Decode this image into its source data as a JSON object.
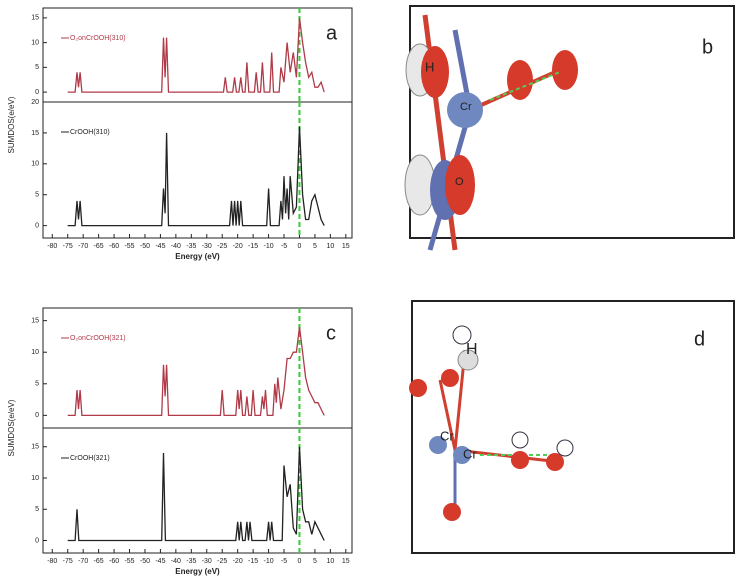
{
  "chart_data": [
    {
      "type": "line",
      "panel_label": "a",
      "xlim": [
        -83,
        17
      ],
      "ylim": [
        -2,
        17
      ],
      "yticks": [
        0,
        5,
        10,
        15
      ],
      "vline": 0,
      "x": [
        -75,
        -72.6,
        -72,
        -71.5,
        -71,
        -70.4,
        -44.6,
        -44,
        -43.5,
        -43,
        -42.4,
        -24.6,
        -24,
        -23.4,
        -21.6,
        -21,
        -20.4,
        -19.6,
        -19,
        -18.4,
        -17.6,
        -17,
        -16.4,
        -14.6,
        -14,
        -13.4,
        -12.6,
        -12,
        -11.4,
        -9.6,
        -9,
        -8.4,
        -6.6,
        -6,
        -5,
        -4,
        -3,
        -2,
        -1,
        0,
        1,
        2,
        3,
        4,
        5,
        6,
        7,
        8
      ],
      "series": [
        {
          "name": "O₂onCrOOH(310)",
          "color": "#b03a48",
          "values": [
            0,
            0,
            4,
            1,
            4,
            0,
            0,
            11,
            3,
            11,
            0,
            0,
            3,
            0,
            0,
            3,
            0,
            0,
            3,
            0,
            0,
            6,
            0,
            0,
            4,
            0,
            0,
            6,
            0,
            0,
            8,
            0,
            0,
            5,
            2,
            10,
            4,
            8,
            3,
            15,
            10,
            6,
            3,
            4,
            1,
            1,
            2,
            0
          ]
        }
      ]
    },
    {
      "type": "line",
      "xlim": [
        -83,
        17
      ],
      "ylim": [
        -2,
        20
      ],
      "yticks": [
        0,
        5,
        10,
        15,
        20
      ],
      "vline": 0,
      "xticks": [
        -80,
        -75,
        -70,
        -65,
        -60,
        -55,
        -50,
        -45,
        -40,
        -35,
        -30,
        -25,
        -20,
        -15,
        -10,
        -5,
        0,
        5,
        10,
        15
      ],
      "xlabel": "Energy (eV)",
      "ylabel": "SUMDOS(e/eV)",
      "x": [
        -75,
        -72.6,
        -72,
        -71.5,
        -71,
        -70.4,
        -44.6,
        -44,
        -43.5,
        -43,
        -42.4,
        -22.6,
        -22,
        -21.5,
        -21,
        -20.5,
        -20,
        -19.5,
        -19,
        -18.4,
        -10.6,
        -10,
        -9.4,
        -6.6,
        -6,
        -5.5,
        -5,
        -4.5,
        -4,
        -3.5,
        -3,
        -2,
        -1,
        0,
        1,
        2,
        3,
        4,
        5,
        6,
        7,
        8
      ],
      "series": [
        {
          "name": "CrOOH(310)",
          "color": "#222222",
          "values": [
            0,
            0,
            4,
            1,
            4,
            0,
            0,
            6,
            2,
            15,
            0,
            0,
            4,
            0,
            4,
            0,
            4,
            0,
            4,
            0,
            0,
            6,
            0,
            0,
            4,
            1,
            8,
            2,
            6,
            1,
            8,
            2,
            3,
            16,
            5,
            1,
            1,
            4,
            5,
            3,
            1,
            0
          ]
        }
      ]
    },
    {
      "type": "line",
      "panel_label": "c",
      "xlim": [
        -83,
        17
      ],
      "ylim": [
        -2,
        17
      ],
      "yticks": [
        0,
        5,
        10,
        15
      ],
      "vline": 0,
      "x": [
        -75,
        -72.6,
        -72,
        -71.5,
        -71,
        -70.4,
        -44.6,
        -44,
        -43.5,
        -43,
        -42.4,
        -25.6,
        -25,
        -24.4,
        -20.6,
        -20,
        -19.5,
        -19,
        -18.4,
        -17.6,
        -17,
        -16.4,
        -15.6,
        -15,
        -14.4,
        -12.6,
        -12,
        -11.5,
        -11,
        -10.4,
        -8.6,
        -8,
        -7.5,
        -7,
        -6,
        -5,
        -4,
        -3,
        -2,
        -1,
        0,
        1,
        2,
        3,
        4,
        5,
        6,
        7,
        8
      ],
      "series": [
        {
          "name": "O₂onCrOOH(321)",
          "color": "#b03a48",
          "values": [
            0,
            0,
            4,
            1,
            4,
            0,
            0,
            8,
            3,
            8,
            0,
            0,
            4,
            0,
            0,
            4,
            1,
            4,
            0,
            0,
            3,
            0,
            0,
            4,
            0,
            0,
            3,
            1,
            4,
            0,
            0,
            5,
            2,
            6,
            1,
            4,
            9,
            9,
            10,
            10,
            14,
            10,
            6,
            4,
            3,
            2,
            2,
            1,
            0
          ]
        }
      ]
    },
    {
      "type": "line",
      "xlim": [
        -83,
        17
      ],
      "ylim": [
        -2,
        18
      ],
      "yticks": [
        0,
        5,
        10,
        15
      ],
      "vline": 0,
      "xticks": [
        -80,
        -75,
        -70,
        -65,
        -60,
        -55,
        -50,
        -45,
        -40,
        -35,
        -30,
        -25,
        -20,
        -15,
        -10,
        -5,
        0,
        5,
        10,
        15
      ],
      "xlabel": "Energy (eV)",
      "ylabel": "SUMDOS(e/eV)",
      "x": [
        -75,
        -72.6,
        -72,
        -71.4,
        -44.6,
        -44,
        -43.4,
        -20.6,
        -20,
        -19.5,
        -19,
        -18.4,
        -17.6,
        -17,
        -16.5,
        -16,
        -15.4,
        -10.6,
        -10,
        -9.5,
        -9,
        -8.4,
        -5.6,
        -5,
        -4,
        -3,
        -2,
        -1,
        0,
        1,
        2,
        3,
        4,
        5,
        6,
        7,
        8
      ],
      "series": [
        {
          "name": "CrOOH(321)",
          "color": "#222222",
          "values": [
            0,
            0,
            5,
            0,
            0,
            14,
            0,
            0,
            3,
            0,
            3,
            0,
            0,
            3,
            0,
            3,
            0,
            0,
            3,
            0,
            3,
            0,
            0,
            12,
            7,
            9,
            2,
            1,
            15,
            5,
            3,
            3,
            1,
            3,
            2,
            1,
            0
          ]
        }
      ]
    }
  ],
  "structures": [
    {
      "panel_label": "b",
      "atoms": [
        "H",
        "Cr",
        "O"
      ]
    },
    {
      "panel_label": "d",
      "atoms": [
        "H",
        "Cr",
        "Cr"
      ]
    }
  ]
}
